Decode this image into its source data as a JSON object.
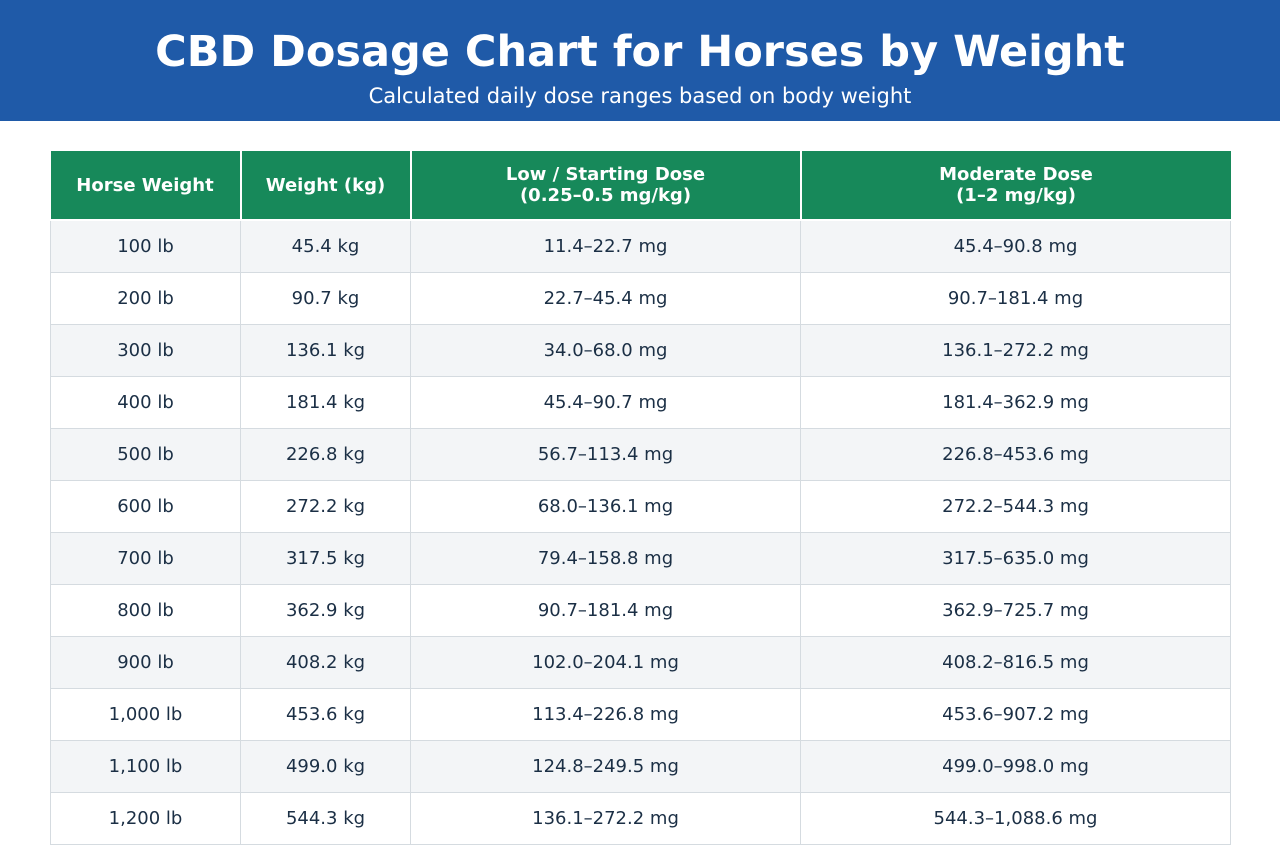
{
  "header": {
    "title": "CBD Dosage Chart for Horses by Weight",
    "subtitle": "Calculated daily dose ranges based on body weight",
    "background_color": "#1f5aa8"
  },
  "chart_data": {
    "type": "table",
    "columns": [
      "Horse Weight",
      "Weight (kg)",
      "Low / Starting Dose\n(0.25–0.5 mg/kg)",
      "Moderate Dose\n(1–2 mg/kg)"
    ],
    "header_color": "#17895a",
    "rows": [
      [
        "100 lb",
        "45.4 kg",
        "11.4–22.7 mg",
        "45.4–90.8 mg"
      ],
      [
        "200 lb",
        "90.7 kg",
        "22.7–45.4 mg",
        "90.7–181.4 mg"
      ],
      [
        "300 lb",
        "136.1 kg",
        "34.0–68.0 mg",
        "136.1–272.2 mg"
      ],
      [
        "400 lb",
        "181.4 kg",
        "45.4–90.7 mg",
        "181.4–362.9 mg"
      ],
      [
        "500 lb",
        "226.8 kg",
        "56.7–113.4 mg",
        "226.8–453.6 mg"
      ],
      [
        "600 lb",
        "272.2 kg",
        "68.0–136.1 mg",
        "272.2–544.3 mg"
      ],
      [
        "700 lb",
        "317.5 kg",
        "79.4–158.8 mg",
        "317.5–635.0 mg"
      ],
      [
        "800 lb",
        "362.9 kg",
        "90.7–181.4 mg",
        "362.9–725.7 mg"
      ],
      [
        "900 lb",
        "408.2 kg",
        "102.0–204.1 mg",
        "408.2–816.5 mg"
      ],
      [
        "1,000 lb",
        "453.6 kg",
        "113.4–226.8 mg",
        "453.6–907.2 mg"
      ],
      [
        "1,100 lb",
        "499.0 kg",
        "124.8–249.5 mg",
        "499.0–998.0 mg"
      ],
      [
        "1,200 lb",
        "544.3 kg",
        "136.1–272.2 mg",
        "544.3–1,088.6 mg"
      ]
    ]
  }
}
